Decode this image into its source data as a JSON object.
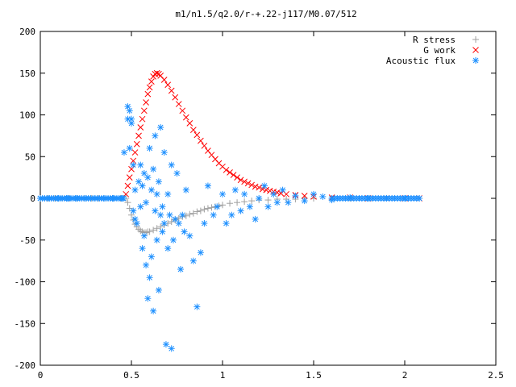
{
  "chart_data": {
    "type": "scatter",
    "title": "m1/n1.5/q2.0/r-+.22-j117/M0.07/512",
    "xlabel": "",
    "ylabel": "",
    "xlim": [
      0,
      2.5
    ],
    "ylim": [
      -200,
      200
    ],
    "x_ticks": [
      0,
      0.5,
      1,
      1.5,
      2,
      2.5
    ],
    "x_tick_labels": [
      "0",
      "0.5",
      "1",
      "1.5",
      "2",
      "2.5"
    ],
    "y_ticks": [
      -200,
      -150,
      -100,
      -50,
      0,
      50,
      100,
      150,
      200
    ],
    "y_tick_labels": [
      "-200",
      "-150",
      "-100",
      "-50",
      "0",
      "50",
      "100",
      "150",
      "200"
    ],
    "grid": false,
    "legend_position": "top-right",
    "series": [
      {
        "name": "R stress",
        "marker": "plus",
        "color": "#a0a0a0",
        "x": [
          0.0,
          0.04,
          0.08,
          0.12,
          0.16,
          0.2,
          0.24,
          0.28,
          0.32,
          0.36,
          0.4,
          0.44,
          0.47,
          0.48,
          0.49,
          0.5,
          0.51,
          0.52,
          0.53,
          0.54,
          0.55,
          0.56,
          0.57,
          0.58,
          0.59,
          0.6,
          0.62,
          0.64,
          0.66,
          0.68,
          0.7,
          0.72,
          0.74,
          0.76,
          0.78,
          0.8,
          0.82,
          0.84,
          0.86,
          0.88,
          0.9,
          0.92,
          0.94,
          0.96,
          0.98,
          1.0,
          1.04,
          1.08,
          1.12,
          1.16,
          1.2,
          1.25,
          1.3,
          1.35,
          1.4,
          1.45,
          1.5,
          1.6,
          1.7,
          1.8,
          1.9,
          2.0,
          2.08
        ],
        "y": [
          0,
          0,
          0,
          0,
          0,
          0,
          0,
          0,
          0,
          0,
          0,
          0,
          0,
          -5,
          -12,
          -20,
          -26,
          -31,
          -34,
          -37,
          -39,
          -40,
          -41,
          -41,
          -40,
          -40,
          -38,
          -36,
          -34,
          -32,
          -30,
          -28,
          -26,
          -24,
          -22,
          -21,
          -19,
          -18,
          -16,
          -15,
          -13,
          -12,
          -11,
          -10,
          -9,
          -8,
          -6,
          -5,
          -4,
          -3,
          -2,
          -2,
          -1,
          -1,
          -1,
          0,
          0,
          0,
          0,
          0,
          0,
          0,
          0
        ]
      },
      {
        "name": "G work",
        "marker": "cross",
        "color": "#ff0000",
        "x": [
          0.47,
          0.48,
          0.49,
          0.5,
          0.51,
          0.52,
          0.53,
          0.54,
          0.55,
          0.56,
          0.57,
          0.58,
          0.59,
          0.6,
          0.61,
          0.62,
          0.63,
          0.64,
          0.65,
          0.66,
          0.68,
          0.7,
          0.72,
          0.74,
          0.76,
          0.78,
          0.8,
          0.82,
          0.84,
          0.86,
          0.88,
          0.9,
          0.92,
          0.94,
          0.96,
          0.98,
          1.0,
          1.02,
          1.04,
          1.06,
          1.08,
          1.1,
          1.12,
          1.14,
          1.16,
          1.18,
          1.2,
          1.22,
          1.24,
          1.26,
          1.28,
          1.3,
          1.32,
          1.35,
          1.4,
          1.45,
          1.5,
          1.6,
          1.7,
          1.8,
          1.9,
          2.0,
          2.08
        ],
        "y": [
          5,
          15,
          25,
          35,
          45,
          55,
          65,
          75,
          85,
          95,
          105,
          115,
          125,
          133,
          140,
          146,
          149,
          150,
          149,
          147,
          142,
          136,
          129,
          121,
          113,
          105,
          97,
          90,
          82,
          76,
          69,
          63,
          57,
          52,
          47,
          42,
          38,
          34,
          31,
          28,
          25,
          22,
          20,
          18,
          16,
          14,
          13,
          11,
          10,
          9,
          8,
          7,
          6,
          5,
          4,
          3,
          2,
          1,
          1,
          0,
          0,
          0,
          0
        ]
      },
      {
        "name": "Acoustic flux",
        "marker": "star",
        "color": "#1e90ff",
        "x": [
          0.0,
          0.05,
          0.1,
          0.15,
          0.2,
          0.25,
          0.3,
          0.35,
          0.4,
          0.45,
          0.46,
          0.48,
          0.48,
          0.49,
          0.49,
          0.5,
          0.5,
          0.51,
          0.51,
          0.52,
          0.52,
          0.53,
          0.54,
          0.55,
          0.55,
          0.56,
          0.56,
          0.57,
          0.57,
          0.58,
          0.58,
          0.59,
          0.59,
          0.6,
          0.6,
          0.61,
          0.61,
          0.62,
          0.62,
          0.63,
          0.63,
          0.64,
          0.64,
          0.65,
          0.65,
          0.66,
          0.66,
          0.67,
          0.67,
          0.68,
          0.68,
          0.69,
          0.7,
          0.7,
          0.71,
          0.72,
          0.72,
          0.73,
          0.74,
          0.75,
          0.76,
          0.77,
          0.78,
          0.79,
          0.8,
          0.82,
          0.84,
          0.86,
          0.88,
          0.9,
          0.92,
          0.95,
          0.97,
          1.0,
          1.02,
          1.05,
          1.07,
          1.1,
          1.12,
          1.15,
          1.18,
          1.2,
          1.23,
          1.25,
          1.28,
          1.3,
          1.33,
          1.36,
          1.4,
          1.45,
          1.5,
          1.55,
          1.6,
          1.7,
          1.8,
          1.9,
          2.0,
          2.08
        ],
        "y": [
          0,
          0,
          0,
          0,
          0,
          0,
          0,
          0,
          0,
          0,
          55,
          95,
          110,
          60,
          105,
          95,
          90,
          -15,
          40,
          -25,
          10,
          -30,
          20,
          -10,
          40,
          15,
          -60,
          30,
          -45,
          -5,
          -80,
          25,
          -120,
          60,
          -95,
          10,
          -70,
          35,
          -135,
          -15,
          75,
          -50,
          5,
          20,
          -110,
          -20,
          85,
          -40,
          -10,
          55,
          -30,
          -175,
          5,
          -60,
          -20,
          -180,
          40,
          -50,
          -25,
          30,
          -30,
          -85,
          -20,
          -40,
          10,
          -45,
          -75,
          -130,
          -65,
          -30,
          15,
          -20,
          -10,
          5,
          -30,
          -20,
          10,
          -15,
          5,
          -10,
          -25,
          0,
          15,
          -10,
          5,
          -5,
          10,
          -5,
          3,
          -3,
          5,
          2,
          -2,
          1,
          0,
          0,
          0,
          0
        ]
      }
    ]
  }
}
